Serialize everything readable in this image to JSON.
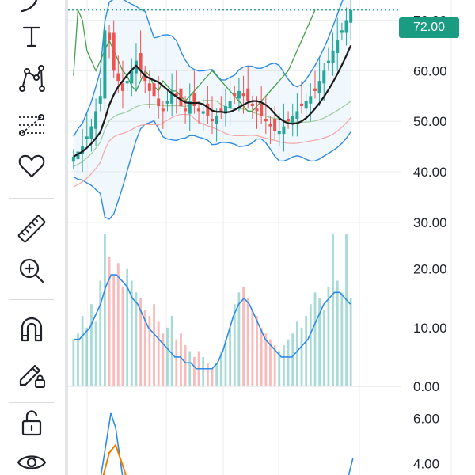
{
  "toolbar": {
    "tools": [
      {
        "name": "curve-tool-icon"
      },
      {
        "name": "text-tool-icon"
      },
      {
        "name": "pattern-tool-icon"
      },
      {
        "name": "fib-tool-icon"
      },
      {
        "name": "favorites-icon"
      },
      {
        "name": "ruler-icon"
      },
      {
        "name": "zoom-in-icon"
      },
      {
        "name": "magnet-icon"
      },
      {
        "name": "lock-drawing-icon"
      },
      {
        "name": "unlock-icon"
      },
      {
        "name": "eye-icon"
      }
    ]
  },
  "price_tag": {
    "label": "72.00",
    "color": "#1a9c83"
  },
  "colors": {
    "up": "#26a69a",
    "down": "#ef5350",
    "bb": "#2e8be6",
    "ma": "#1a1a1a",
    "green_line": "#43a047",
    "orange": "#f57c00",
    "grid": "#eeeeee"
  },
  "chart_data": [
    {
      "type": "candlestick",
      "pane": "price",
      "y_ticks": [
        "70.00",
        "60.00",
        "50.00",
        "40.00",
        "30.00"
      ],
      "y_tick_values": [
        70,
        60,
        50,
        40,
        30
      ],
      "ylim": [
        27,
        74
      ],
      "last_price": 72,
      "series": [
        {
          "name": "close",
          "values": [
            43,
            44,
            45,
            47,
            49,
            52,
            55,
            68,
            66,
            60,
            58,
            56,
            58,
            60,
            62,
            60,
            58,
            56,
            55,
            53,
            52,
            54,
            56,
            55,
            53,
            52,
            54,
            53,
            52,
            52,
            51,
            50,
            51,
            52,
            53,
            54,
            55,
            56,
            55,
            54,
            53,
            52,
            51,
            50,
            49,
            48,
            48,
            49,
            50,
            51,
            52,
            53,
            54,
            55,
            56,
            58,
            60,
            62,
            64,
            66,
            68,
            70,
            72
          ]
        }
      ]
    },
    {
      "type": "bar",
      "pane": "volume",
      "y_ticks": [
        "20.00",
        "10.00",
        "0.00"
      ],
      "y_tick_values": [
        20,
        10,
        0
      ],
      "ylim": [
        0,
        24
      ],
      "values": [
        8,
        9,
        12,
        10,
        14,
        11,
        18,
        26,
        22,
        19,
        21,
        17,
        20,
        18,
        16,
        15,
        13,
        12,
        14,
        11,
        9,
        10,
        12,
        8,
        9,
        7,
        6,
        5,
        6,
        5,
        4,
        3,
        4,
        6,
        8,
        10,
        14,
        16,
        17,
        15,
        13,
        12,
        10,
        9,
        8,
        7,
        6,
        7,
        8,
        9,
        11,
        10,
        12,
        14,
        16,
        15,
        13,
        17,
        26,
        18,
        16,
        26,
        15
      ],
      "line": [
        8,
        8,
        9,
        10,
        12,
        14,
        17,
        19,
        19,
        18,
        17,
        15,
        14,
        12,
        10,
        9,
        8,
        7,
        6,
        5,
        5,
        4,
        4,
        3,
        3,
        3,
        3,
        4,
        6,
        9,
        12,
        14,
        15,
        14,
        12,
        10,
        8,
        7,
        6,
        5,
        5,
        5,
        6,
        7,
        8,
        10,
        12,
        14,
        15,
        16,
        16,
        15,
        14
      ]
    },
    {
      "type": "line",
      "pane": "oscillator",
      "y_ticks": [
        "6.00",
        "4.00"
      ],
      "y_tick_values": [
        6,
        4
      ],
      "ylim": [
        3.5,
        7
      ]
    }
  ]
}
